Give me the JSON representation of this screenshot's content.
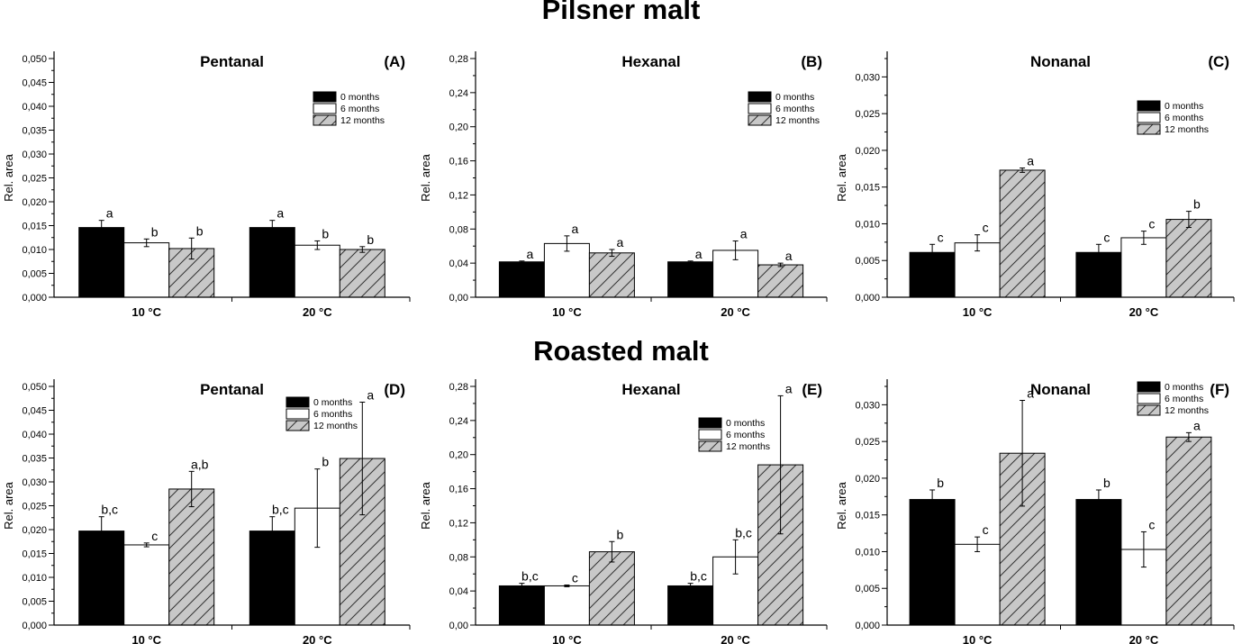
{
  "sections": {
    "pilsner": "Pilsner malt",
    "roasted": "Roasted malt"
  },
  "colors": {
    "series_0": "#000000",
    "series_6": "#ffffff",
    "series_12": "#c8c8c8",
    "stroke": "#000000"
  },
  "chart_data": [
    {
      "id": "A",
      "panel_label": "(A)",
      "type": "bar",
      "title": "Pentanal",
      "xlabel": "",
      "ylabel": "Rel. area",
      "ylim": [
        0,
        0.05
      ],
      "yticks": [
        "0,000",
        "0,005",
        "0,010",
        "0,015",
        "0,020",
        "0,025",
        "0,030",
        "0,035",
        "0,040",
        "0,045",
        "0,050"
      ],
      "categories": [
        "10 °C",
        "20 °C"
      ],
      "legend_position": "top-right",
      "series": [
        {
          "name": "0 months",
          "values": [
            0.0146,
            0.0146
          ],
          "errors": [
            0.0015,
            0.0015
          ],
          "letters": [
            "a",
            "a"
          ]
        },
        {
          "name": "6 months",
          "values": [
            0.0114,
            0.0109
          ],
          "errors": [
            0.0008,
            0.0009
          ],
          "letters": [
            "b",
            "b"
          ]
        },
        {
          "name": "12 months",
          "values": [
            0.0102,
            0.01
          ],
          "errors": [
            0.0022,
            0.0006
          ],
          "letters": [
            "b",
            "b"
          ]
        }
      ]
    },
    {
      "id": "B",
      "panel_label": "(B)",
      "type": "bar",
      "title": "Hexanal",
      "xlabel": "",
      "ylabel": "Rel. area",
      "ylim": [
        0,
        0.28
      ],
      "yticks": [
        "0,00",
        "0,04",
        "0,08",
        "0,12",
        "0,16",
        "0,20",
        "0,24",
        "0,28"
      ],
      "categories": [
        "10 °C",
        "20 °C"
      ],
      "legend_position": "top-right",
      "series": [
        {
          "name": "0 months",
          "values": [
            0.0415,
            0.0415
          ],
          "errors": [
            0.001,
            0.001
          ],
          "letters": [
            "a",
            "a"
          ]
        },
        {
          "name": "6 months",
          "values": [
            0.063,
            0.055
          ],
          "errors": [
            0.009,
            0.011
          ],
          "letters": [
            "a",
            "a"
          ]
        },
        {
          "name": "12 months",
          "values": [
            0.052,
            0.038
          ],
          "errors": [
            0.004,
            0.002
          ],
          "letters": [
            "a",
            "a"
          ]
        }
      ]
    },
    {
      "id": "C",
      "panel_label": "(C)",
      "type": "bar",
      "title": "Nonanal",
      "xlabel": "",
      "ylabel": "Rel. area",
      "ylim": [
        0,
        0.0325
      ],
      "yticks": [
        "0,000",
        "0,005",
        "0,010",
        "0,015",
        "0,020",
        "0,025",
        "0,030"
      ],
      "categories": [
        "10 °C",
        "20 °C"
      ],
      "legend_position": "top-right",
      "series": [
        {
          "name": "0 months",
          "values": [
            0.0061,
            0.0061
          ],
          "errors": [
            0.0011,
            0.0011
          ],
          "letters": [
            "c",
            "c"
          ]
        },
        {
          "name": "6 months",
          "values": [
            0.0074,
            0.0081
          ],
          "errors": [
            0.0011,
            0.0009
          ],
          "letters": [
            "c",
            "c"
          ]
        },
        {
          "name": "12 months",
          "values": [
            0.0173,
            0.0106
          ],
          "errors": [
            0.0003,
            0.0011
          ],
          "letters": [
            "a",
            "b"
          ]
        }
      ]
    },
    {
      "id": "D",
      "panel_label": "(D)",
      "type": "bar",
      "title": "Pentanal",
      "xlabel": "",
      "ylabel": "Rel. area",
      "ylim": [
        0,
        0.05
      ],
      "yticks": [
        "0,000",
        "0,005",
        "0,010",
        "0,015",
        "0,020",
        "0,025",
        "0,030",
        "0,035",
        "0,040",
        "0,045",
        "0,050"
      ],
      "categories": [
        "10 °C",
        "20 °C"
      ],
      "legend_position": "top-right",
      "series": [
        {
          "name": "0 months",
          "values": [
            0.0197,
            0.0197
          ],
          "errors": [
            0.003,
            0.003
          ],
          "letters": [
            "b,c",
            "b,c"
          ]
        },
        {
          "name": "6 months",
          "values": [
            0.0168,
            0.0245
          ],
          "errors": [
            0.0004,
            0.0082
          ],
          "letters": [
            "c",
            "b"
          ]
        },
        {
          "name": "12 months",
          "values": [
            0.0285,
            0.0349
          ],
          "errors": [
            0.0037,
            0.0118
          ],
          "letters": [
            "a,b",
            "a"
          ]
        }
      ]
    },
    {
      "id": "E",
      "panel_label": "(E)",
      "type": "bar",
      "title": "Hexanal",
      "xlabel": "",
      "ylabel": "Rel. area",
      "ylim": [
        0,
        0.28
      ],
      "yticks": [
        "0,00",
        "0,04",
        "0,08",
        "0,12",
        "0,16",
        "0,20",
        "0,24",
        "0,28"
      ],
      "categories": [
        "10 °C",
        "20 °C"
      ],
      "legend_position": "top-right",
      "series": [
        {
          "name": "0 months",
          "values": [
            0.046,
            0.046
          ],
          "errors": [
            0.003,
            0.003
          ],
          "letters": [
            "b,c",
            "b,c"
          ]
        },
        {
          "name": "6 months",
          "values": [
            0.046,
            0.08
          ],
          "errors": [
            0.001,
            0.02
          ],
          "letters": [
            "c",
            "b,c"
          ]
        },
        {
          "name": "12 months",
          "values": [
            0.086,
            0.188
          ],
          "errors": [
            0.012,
            0.081
          ],
          "letters": [
            "b",
            "a"
          ]
        }
      ]
    },
    {
      "id": "F",
      "panel_label": "(F)",
      "type": "bar",
      "title": "Nonanal",
      "xlabel": "",
      "ylabel": "Rel. area",
      "ylim": [
        0,
        0.0325
      ],
      "yticks": [
        "0,000",
        "0,005",
        "0,010",
        "0,015",
        "0,020",
        "0,025",
        "0,030"
      ],
      "categories": [
        "10 °C",
        "20 °C"
      ],
      "legend_position": "top-right",
      "series": [
        {
          "name": "0 months",
          "values": [
            0.0171,
            0.0171
          ],
          "errors": [
            0.0013,
            0.0013
          ],
          "letters": [
            "b",
            "b"
          ]
        },
        {
          "name": "6 months",
          "values": [
            0.011,
            0.0103
          ],
          "errors": [
            0.001,
            0.0024
          ],
          "letters": [
            "c",
            "c"
          ]
        },
        {
          "name": "12 months",
          "values": [
            0.0234,
            0.0256
          ],
          "errors": [
            0.0072,
            0.0006
          ],
          "letters": [
            "a",
            "a"
          ]
        }
      ]
    }
  ]
}
